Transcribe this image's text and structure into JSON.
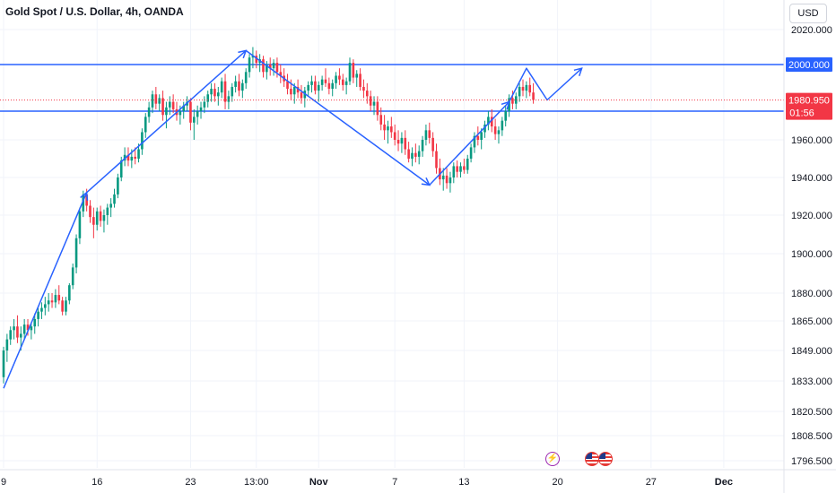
{
  "header": {
    "title": "Gold Spot / U.S. Dollar, 4h, OANDA",
    "currency_button": "USD"
  },
  "colors": {
    "up": "#089981",
    "down": "#f23645",
    "drawing": "#2962ff",
    "axis_text": "#131722",
    "grid": "#f0f3fa"
  },
  "icons": [
    "lightning-icon",
    "us-flag-icon",
    "us-flag-icon"
  ],
  "chart_data": {
    "type": "candlestick",
    "y_axis_labels": [
      "2020.000",
      "1960.000",
      "1940.000",
      "1920.000",
      "1900.000",
      "1880.000",
      "1865.000",
      "1849.000",
      "1833.000",
      "1820.500",
      "1808.500",
      "1796.500"
    ],
    "y_axis_values": [
      2020,
      1960,
      1940,
      1920,
      1900,
      1880,
      1865,
      1849,
      1833,
      1820.5,
      1808.5,
      1796.5
    ],
    "x_axis_labels": [
      "9",
      "16",
      "23",
      "13:00",
      "Nov",
      "7",
      "13",
      "20",
      "27",
      "Dec"
    ],
    "x_axis_index": [
      0,
      27,
      54,
      73,
      91,
      113,
      133,
      160,
      187,
      208
    ],
    "horizontal_levels": [
      {
        "label": "2000.000",
        "value": 2000
      },
      {
        "label": "1975.000",
        "value": 1975
      }
    ],
    "last_price": {
      "label": "1980.950",
      "countdown": "01:56",
      "value": 1980.95
    },
    "candles": [
      [
        1835,
        1851,
        1832,
        1849
      ],
      [
        1849,
        1858,
        1843,
        1855
      ],
      [
        1855,
        1862,
        1852,
        1860
      ],
      [
        1860,
        1866,
        1855,
        1862
      ],
      [
        1862,
        1868,
        1853,
        1856
      ],
      [
        1856,
        1862,
        1849,
        1858
      ],
      [
        1858,
        1866,
        1855,
        1863
      ],
      [
        1863,
        1866,
        1857,
        1860
      ],
      [
        1860,
        1864,
        1855,
        1862
      ],
      [
        1862,
        1869,
        1858,
        1866
      ],
      [
        1866,
        1872,
        1862,
        1870
      ],
      [
        1870,
        1875,
        1866,
        1872
      ],
      [
        1872,
        1878,
        1868,
        1874
      ],
      [
        1874,
        1880,
        1870,
        1876
      ],
      [
        1876,
        1880,
        1872,
        1875
      ],
      [
        1875,
        1882,
        1872,
        1879
      ],
      [
        1879,
        1884,
        1874,
        1876
      ],
      [
        1876,
        1878,
        1868,
        1870
      ],
      [
        1870,
        1878,
        1868,
        1876
      ],
      [
        1876,
        1885,
        1874,
        1884
      ],
      [
        1884,
        1895,
        1882,
        1893
      ],
      [
        1893,
        1910,
        1890,
        1908
      ],
      [
        1908,
        1924,
        1905,
        1922
      ],
      [
        1922,
        1933,
        1919,
        1931
      ],
      [
        1931,
        1934,
        1922,
        1925
      ],
      [
        1925,
        1928,
        1916,
        1919
      ],
      [
        1919,
        1924,
        1908,
        1915
      ],
      [
        1915,
        1924,
        1912,
        1922
      ],
      [
        1922,
        1925,
        1914,
        1917
      ],
      [
        1917,
        1923,
        1911,
        1920
      ],
      [
        1920,
        1926,
        1915,
        1924
      ],
      [
        1924,
        1929,
        1919,
        1926
      ],
      [
        1926,
        1934,
        1924,
        1931
      ],
      [
        1931,
        1942,
        1929,
        1940
      ],
      [
        1940,
        1951,
        1938,
        1949
      ],
      [
        1949,
        1956,
        1946,
        1952
      ],
      [
        1952,
        1956,
        1946,
        1949
      ],
      [
        1949,
        1955,
        1945,
        1951
      ],
      [
        1951,
        1956,
        1947,
        1950
      ],
      [
        1950,
        1958,
        1948,
        1955
      ],
      [
        1955,
        1966,
        1952,
        1964
      ],
      [
        1964,
        1974,
        1961,
        1972
      ],
      [
        1972,
        1980,
        1969,
        1977
      ],
      [
        1977,
        1986,
        1974,
        1984
      ],
      [
        1984,
        1988,
        1976,
        1979
      ],
      [
        1979,
        1984,
        1975,
        1982
      ],
      [
        1982,
        1986,
        1970,
        1973
      ],
      [
        1973,
        1980,
        1966,
        1977
      ],
      [
        1977,
        1983,
        1973,
        1980
      ],
      [
        1980,
        1984,
        1974,
        1976
      ],
      [
        1976,
        1980,
        1970,
        1973
      ],
      [
        1973,
        1978,
        1968,
        1975
      ],
      [
        1975,
        1980,
        1971,
        1978
      ],
      [
        1978,
        1983,
        1975,
        1980
      ],
      [
        1980,
        1982,
        1965,
        1969
      ],
      [
        1969,
        1976,
        1960,
        1972
      ],
      [
        1972,
        1978,
        1968,
        1975
      ],
      [
        1975,
        1980,
        1971,
        1977
      ],
      [
        1977,
        1983,
        1974,
        1980
      ],
      [
        1980,
        1986,
        1977,
        1984
      ],
      [
        1984,
        1990,
        1980,
        1987
      ],
      [
        1987,
        1990,
        1980,
        1983
      ],
      [
        1983,
        1988,
        1978,
        1985
      ],
      [
        1985,
        1993,
        1982,
        1991
      ],
      [
        1991,
        1995,
        1976,
        1980
      ],
      [
        1980,
        1986,
        1976,
        1983
      ],
      [
        1983,
        1990,
        1980,
        1988
      ],
      [
        1988,
        1994,
        1985,
        1991
      ],
      [
        1991,
        1995,
        1983,
        1986
      ],
      [
        1986,
        1992,
        1982,
        1990
      ],
      [
        1990,
        1998,
        1987,
        1996
      ],
      [
        1996,
        2006,
        1993,
        2004
      ],
      [
        2004,
        2010,
        1998,
        2005
      ],
      [
        2005,
        2008,
        1998,
        2001
      ],
      [
        2001,
        2006,
        1996,
        2003
      ],
      [
        2003,
        2005,
        1993,
        1996
      ],
      [
        1996,
        2002,
        1992,
        2000
      ],
      [
        2000,
        2004,
        1994,
        1998
      ],
      [
        1998,
        2003,
        1994,
        2001
      ],
      [
        2001,
        2004,
        1993,
        1996
      ],
      [
        1996,
        2000,
        1990,
        1994
      ],
      [
        1994,
        1998,
        1988,
        1991
      ],
      [
        1991,
        1995,
        1984,
        1987
      ],
      [
        1987,
        1992,
        1981,
        1984
      ],
      [
        1984,
        1990,
        1979,
        1988
      ],
      [
        1988,
        1992,
        1982,
        1985
      ],
      [
        1985,
        1989,
        1979,
        1982
      ],
      [
        1982,
        1988,
        1977,
        1986
      ],
      [
        1986,
        1991,
        1983,
        1989
      ],
      [
        1989,
        1994,
        1985,
        1991
      ],
      [
        1991,
        1994,
        1984,
        1986
      ],
      [
        1986,
        1991,
        1980,
        1989
      ],
      [
        1989,
        1994,
        1986,
        1992
      ],
      [
        1992,
        1998,
        1988,
        1990
      ],
      [
        1990,
        1993,
        1984,
        1987
      ],
      [
        1987,
        1992,
        1983,
        1990
      ],
      [
        1990,
        1996,
        1987,
        1994
      ],
      [
        1994,
        1998,
        1989,
        1992
      ],
      [
        1992,
        1995,
        1986,
        1989
      ],
      [
        1989,
        1993,
        1984,
        1991
      ],
      [
        1991,
        2004,
        1989,
        2001
      ],
      [
        2001,
        2003,
        1990,
        1993
      ],
      [
        1993,
        1997,
        1988,
        1995
      ],
      [
        1995,
        1998,
        1986,
        1988
      ],
      [
        1988,
        1992,
        1982,
        1986
      ],
      [
        1986,
        1990,
        1979,
        1983
      ],
      [
        1983,
        1986,
        1975,
        1978
      ],
      [
        1978,
        1983,
        1973,
        1980
      ],
      [
        1980,
        1983,
        1970,
        1973
      ],
      [
        1973,
        1977,
        1965,
        1968
      ],
      [
        1968,
        1973,
        1960,
        1965
      ],
      [
        1965,
        1970,
        1958,
        1967
      ],
      [
        1967,
        1972,
        1961,
        1964
      ],
      [
        1964,
        1968,
        1957,
        1960
      ],
      [
        1960,
        1965,
        1954,
        1958
      ],
      [
        1958,
        1964,
        1953,
        1961
      ],
      [
        1961,
        1965,
        1952,
        1955
      ],
      [
        1955,
        1959,
        1948,
        1950
      ],
      [
        1950,
        1956,
        1946,
        1953
      ],
      [
        1953,
        1958,
        1948,
        1951
      ],
      [
        1951,
        1957,
        1947,
        1954
      ],
      [
        1954,
        1962,
        1951,
        1960
      ],
      [
        1960,
        1968,
        1957,
        1965
      ],
      [
        1965,
        1969,
        1958,
        1961
      ],
      [
        1961,
        1964,
        1951,
        1954
      ],
      [
        1954,
        1958,
        1942,
        1945
      ],
      [
        1945,
        1950,
        1936,
        1939
      ],
      [
        1939,
        1945,
        1933,
        1941
      ],
      [
        1941,
        1945,
        1934,
        1937
      ],
      [
        1937,
        1943,
        1932,
        1940
      ],
      [
        1940,
        1948,
        1937,
        1946
      ],
      [
        1946,
        1949,
        1940,
        1943
      ],
      [
        1943,
        1948,
        1940,
        1946
      ],
      [
        1946,
        1950,
        1942,
        1944
      ],
      [
        1944,
        1952,
        1942,
        1950
      ],
      [
        1950,
        1958,
        1948,
        1956
      ],
      [
        1956,
        1964,
        1953,
        1962
      ],
      [
        1962,
        1967,
        1957,
        1960
      ],
      [
        1960,
        1966,
        1955,
        1964
      ],
      [
        1964,
        1970,
        1961,
        1968
      ],
      [
        1968,
        1975,
        1965,
        1972
      ],
      [
        1972,
        1976,
        1964,
        1967
      ],
      [
        1967,
        1971,
        1960,
        1963
      ],
      [
        1963,
        1967,
        1958,
        1965
      ],
      [
        1965,
        1972,
        1962,
        1970
      ],
      [
        1970,
        1978,
        1967,
        1975
      ],
      [
        1975,
        1984,
        1972,
        1982
      ],
      [
        1982,
        1986,
        1976,
        1979
      ],
      [
        1979,
        1985,
        1976,
        1983
      ],
      [
        1983,
        1990,
        1980,
        1988
      ],
      [
        1988,
        1992,
        1983,
        1986
      ],
      [
        1986,
        1991,
        1982,
        1989
      ],
      [
        1989,
        1993,
        1983,
        1985
      ],
      [
        1985,
        1990,
        1979,
        1981
      ]
    ],
    "drawings": [
      {
        "type": "line",
        "points": [
          [
            0,
            1830
          ],
          [
            24,
            1932
          ]
        ]
      },
      {
        "type": "line",
        "points": [
          [
            24,
            1932
          ],
          [
            70,
            2008
          ]
        ]
      },
      {
        "type": "line",
        "points": [
          [
            70,
            2008
          ],
          [
            123,
            1936
          ]
        ]
      },
      {
        "type": "line",
        "points": [
          [
            123,
            1936
          ],
          [
            146,
            1980
          ]
        ]
      },
      {
        "type": "polyline",
        "points": [
          [
            146,
            1980
          ],
          [
            151,
            1998
          ],
          [
            157,
            1981
          ],
          [
            167,
            1998
          ]
        ]
      }
    ]
  }
}
